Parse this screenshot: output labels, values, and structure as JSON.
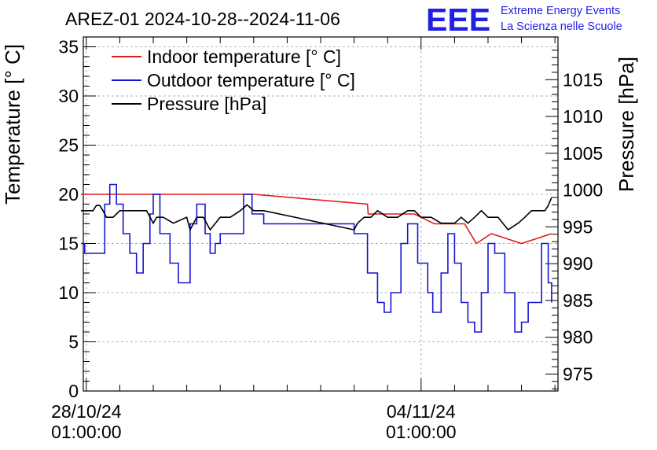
{
  "chart_data": {
    "type": "line",
    "title": "AREZ-01 2024-10-28--2024-11-06",
    "logo": {
      "text": "EEE",
      "line1": "Extreme Energy Events",
      "line2": "La Scienza nelle Scuole",
      "color": "#1f1fe6"
    },
    "ylabel_left": "Temperature [° C]",
    "ylabel_right": "Pressure [hPa]",
    "ylim_left": [
      0,
      36
    ],
    "ylim_right": [
      972.7,
      1020.8
    ],
    "yticks_left": [
      0,
      5,
      10,
      15,
      20,
      25,
      30,
      35
    ],
    "yticks_right": [
      975,
      980,
      985,
      990,
      995,
      1000,
      1005,
      1010,
      1015
    ],
    "xlim_days": [
      -0.09,
      14.09
    ],
    "xticks": [
      {
        "day": 0,
        "line1": "28/10/24",
        "line2": "01:00:00"
      },
      {
        "day": 10,
        "line1": "04/11/24",
        "line2": "01:00:00"
      }
    ],
    "grid": true,
    "legend_position": "top-left",
    "series": [
      {
        "name": "Indoor temperature [° C]",
        "axis": "left",
        "color": "#e11b1b",
        "x": [
          -0.16,
          5.0,
          8.4,
          8.4,
          8.42,
          8.42,
          9.3,
          9.3,
          9.8,
          9.8,
          10.4,
          10.4,
          11.3,
          11.3,
          11.65,
          11.65,
          12.1,
          12.1,
          13.0,
          13.0,
          13.9
        ],
        "y": [
          20,
          20,
          19,
          19,
          18,
          18,
          18,
          18,
          18,
          18,
          17,
          17,
          17,
          17,
          15,
          15,
          16,
          16,
          15,
          15,
          16
        ]
      },
      {
        "name": "Outdoor temperature [° C]",
        "axis": "left",
        "color": "#1515d6",
        "x": [
          -0.16,
          -0.05,
          0.3,
          0.55,
          0.7,
          0.9,
          1.1,
          1.3,
          1.5,
          1.7,
          1.9,
          2.0,
          2.2,
          2.5,
          2.75,
          3.1,
          3.3,
          3.55,
          3.7,
          3.85,
          4.0,
          4.7,
          4.95,
          5.3,
          8.0,
          8.4,
          8.7,
          8.9,
          9.1,
          9.4,
          9.6,
          9.9,
          10.2,
          10.35,
          10.6,
          10.8,
          11.0,
          11.2,
          11.4,
          11.6,
          11.8,
          12.0,
          12.2,
          12.5,
          12.8,
          13.0,
          13.2,
          13.6,
          13.8,
          13.9
        ],
        "y": [
          15,
          14,
          14,
          19,
          21,
          19,
          16,
          14,
          12,
          15,
          18,
          20,
          16,
          13,
          11,
          17,
          19,
          16,
          14,
          15,
          16,
          20,
          18,
          17,
          16,
          12,
          9,
          8,
          10,
          15,
          17,
          13,
          10,
          8,
          12,
          16,
          13,
          9,
          7,
          6,
          10,
          15,
          14,
          10,
          6,
          7,
          9,
          15,
          11,
          9
        ],
        "style": "stepped"
      },
      {
        "name": "Pressure [hPa]",
        "axis": "right",
        "color": "#000000",
        "x": [
          -0.16,
          0.1,
          0.2,
          0.3,
          0.4,
          0.5,
          0.6,
          0.8,
          1.0,
          1.1,
          1.3,
          1.5,
          1.8,
          2.0,
          2.1,
          2.3,
          2.6,
          3.0,
          3.1,
          3.3,
          3.5,
          3.7,
          4.0,
          4.3,
          4.6,
          4.8,
          5.0,
          5.3,
          8.0,
          8.1,
          8.3,
          8.5,
          8.7,
          9.0,
          9.3,
          9.6,
          9.8,
          10.0,
          10.3,
          10.6,
          10.8,
          11.0,
          11.2,
          11.4,
          11.6,
          11.8,
          12.0,
          12.3,
          12.6,
          12.9,
          13.1,
          13.3,
          13.5,
          13.7,
          13.8,
          13.9
        ],
        "y": [
          997.2,
          997.2,
          997.2,
          997.9,
          997.9,
          997.2,
          996.3,
          996.3,
          997.2,
          997.2,
          997.2,
          997.2,
          997.2,
          995.5,
          996.3,
          996.3,
          995.5,
          996.3,
          994.6,
          996.3,
          996.3,
          994.6,
          996.3,
          996.3,
          997.2,
          998.0,
          997.2,
          997.2,
          994.6,
          995.5,
          996.3,
          996.3,
          997.2,
          996.3,
          996.3,
          997.2,
          997.2,
          996.3,
          996.3,
          995.5,
          995.5,
          995.5,
          996.3,
          995.5,
          996.3,
          997.2,
          996.3,
          996.3,
          994.6,
          995.5,
          996.3,
          997.2,
          997.2,
          997.2,
          997.9,
          999.0
        ]
      }
    ]
  }
}
